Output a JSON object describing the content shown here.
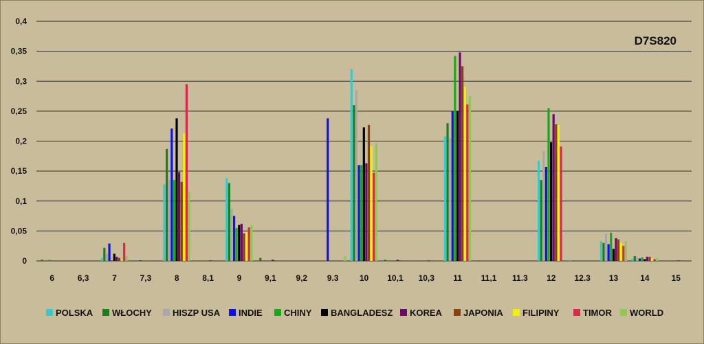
{
  "chart_data": {
    "type": "bar",
    "title": "D7S820",
    "xlabel": "",
    "ylabel": "",
    "ylim": [
      0,
      0.4
    ],
    "yticks": [
      "0",
      "0,05",
      "0,1",
      "0,15",
      "0,2",
      "0,25",
      "0,3",
      "0,35",
      "0,4"
    ],
    "ytick_values": [
      0,
      0.05,
      0.1,
      0.15,
      0.2,
      0.25,
      0.3,
      0.35,
      0.4
    ],
    "grid": true,
    "legend_position": "bottom",
    "categories": [
      "6",
      "6,3",
      "7",
      "7,3",
      "8",
      "8,1",
      "9",
      "9,1",
      "9,2",
      "9.3",
      "10",
      "10,1",
      "10,3",
      "11",
      "11,1",
      "11.3",
      "12",
      "12.3",
      "13",
      "14",
      "15"
    ],
    "series": [
      {
        "name": "POLSKA",
        "color": "#3cc8c8",
        "values": [
          0,
          0,
          0.005,
          0,
          0.128,
          0,
          0.138,
          0,
          0,
          0,
          0.32,
          0,
          0,
          0.208,
          0,
          0,
          0.167,
          0.002,
          0.033,
          0.004,
          0
        ]
      },
      {
        "name": "WŁOCHY",
        "color": "#1e7d1e",
        "values": [
          0.002,
          0,
          0.022,
          0,
          0.187,
          0,
          0.13,
          0.005,
          0,
          0,
          0.26,
          0.002,
          0,
          0.23,
          0.001,
          0,
          0.135,
          0,
          0.03,
          0.008,
          0
        ]
      },
      {
        "name": "HISZP USA",
        "color": "#a8a8a8",
        "values": [
          0,
          0,
          0.012,
          0,
          0.135,
          0,
          0.087,
          0,
          0,
          0,
          0.285,
          0,
          0,
          0.205,
          0,
          0,
          0.183,
          0,
          0.045,
          0.006,
          0
        ]
      },
      {
        "name": "INDIE",
        "color": "#1010e8",
        "values": [
          0,
          0,
          0.029,
          0.001,
          0.221,
          0,
          0.075,
          0,
          0,
          0.238,
          0.16,
          0,
          0,
          0.25,
          0,
          0,
          0.157,
          0,
          0.028,
          0.004,
          0
        ]
      },
      {
        "name": "CHINY",
        "color": "#18a818",
        "values": [
          0.002,
          0,
          0,
          0,
          0.135,
          0,
          0.055,
          0,
          0.001,
          0,
          0.16,
          0,
          0,
          0.342,
          0,
          0,
          0.255,
          0,
          0.047,
          0.006,
          0
        ]
      },
      {
        "name": "BANGLADESZ",
        "color": "#000000",
        "values": [
          0,
          0,
          0.012,
          0,
          0.238,
          0,
          0.06,
          0,
          0,
          0,
          0.223,
          0,
          0,
          0.25,
          0,
          0,
          0.198,
          0,
          0.02,
          0.003,
          0
        ]
      },
      {
        "name": "KOREA",
        "color": "#6a0a6a",
        "values": [
          0,
          0,
          0.007,
          0,
          0.148,
          0.001,
          0.062,
          0.002,
          0,
          0,
          0.163,
          0.002,
          0.001,
          0.348,
          0,
          0,
          0.245,
          0,
          0.038,
          0.007,
          0.001
        ]
      },
      {
        "name": "JAPONIA",
        "color": "#8a4010",
        "values": [
          0,
          0,
          0.005,
          0,
          0.132,
          0,
          0.046,
          0.001,
          0,
          0,
          0.227,
          0.001,
          0,
          0.325,
          0,
          0,
          0.228,
          0,
          0.036,
          0.007,
          0
        ]
      },
      {
        "name": "FILIPINY",
        "color": "#f0f000",
        "values": [
          0,
          0,
          0.002,
          0,
          0.213,
          0,
          0.048,
          0,
          0,
          0,
          0.192,
          0,
          0,
          0.291,
          0,
          0,
          0.227,
          0,
          0.03,
          0.004,
          0
        ]
      },
      {
        "name": "TIMOR",
        "color": "#d8284e",
        "values": [
          0,
          0,
          0.03,
          0,
          0.295,
          0,
          0.056,
          0,
          0,
          0,
          0.147,
          0,
          0,
          0.261,
          0,
          0,
          0.191,
          0,
          0.025,
          0.003,
          0
        ]
      },
      {
        "name": "WORLD",
        "color": "#90c850",
        "values": [
          0,
          0,
          0.008,
          0,
          0.115,
          0,
          0.06,
          0,
          0,
          0.008,
          0.196,
          0,
          0,
          0.275,
          0,
          0,
          0,
          0,
          0.033,
          0.005,
          0
        ]
      }
    ]
  }
}
